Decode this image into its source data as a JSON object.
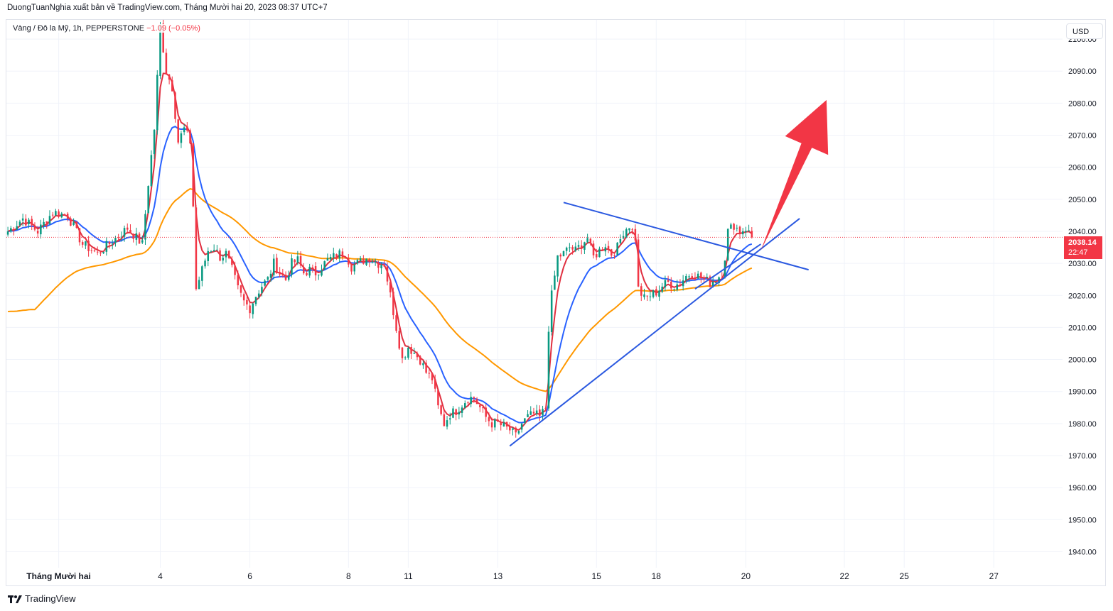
{
  "header": {
    "text": "DuongTuanNghia xuất bản về TradingView.com, Tháng Mười hai 20, 2023 08:37 UTC+7"
  },
  "symbol": {
    "name": "Vàng / Đô la Mỹ, 1h, PEPPERSTONE",
    "change": "−1.09 (−0.05%)"
  },
  "currency": "USD",
  "last_price": {
    "value": "2038.14",
    "countdown": "22:47"
  },
  "footer": {
    "brand": "TradingView"
  },
  "colors": {
    "up": "#089981",
    "down": "#f23645",
    "ma_fast": "#e03040",
    "ma_mid": "#2962ff",
    "ma_slow": "#ff9800",
    "trendline": "#2b59e0",
    "arrow": "#f23645"
  },
  "chart_data": {
    "type": "candlestick",
    "title": "",
    "y_axis": {
      "ticks": [
        "1940.00",
        "1950.00",
        "1960.00",
        "1970.00",
        "1980.00",
        "1990.00",
        "2000.00",
        "2010.00",
        "2020.00",
        "2030.00",
        "2040.00",
        "2050.00",
        "2060.00",
        "2070.00",
        "2080.00",
        "2090.00",
        "2100.00"
      ],
      "ylim": [
        1935,
        2106
      ]
    },
    "x_axis": {
      "ticks": [
        {
          "label": "Tháng Mười hai",
          "index": 17
        },
        {
          "label": "4",
          "index": 51
        },
        {
          "label": "6",
          "index": 81
        },
        {
          "label": "8",
          "index": 114
        },
        {
          "label": "11",
          "index": 134
        },
        {
          "label": "13",
          "index": 164
        },
        {
          "label": "15",
          "index": 197
        },
        {
          "label": "18",
          "index": 217
        },
        {
          "label": "20",
          "index": 247
        },
        {
          "label": "22",
          "index": 280
        },
        {
          "label": "25",
          "index": 300
        },
        {
          "label": "27",
          "index": 330
        }
      ],
      "xlim": [
        -0.5,
        353
      ]
    },
    "price_path": [
      [
        0,
        2040
      ],
      [
        5,
        2044
      ],
      [
        10,
        2040
      ],
      [
        15,
        2046
      ],
      [
        20,
        2045
      ],
      [
        25,
        2036
      ],
      [
        30,
        2033
      ],
      [
        35,
        2037
      ],
      [
        40,
        2041
      ],
      [
        45,
        2036
      ],
      [
        47,
        2055
      ],
      [
        49,
        2072
      ],
      [
        51,
        2104
      ],
      [
        53,
        2090
      ],
      [
        55,
        2085
      ],
      [
        57,
        2068
      ],
      [
        59,
        2072
      ],
      [
        61,
        2068
      ],
      [
        62,
        2048
      ],
      [
        63,
        2022
      ],
      [
        65,
        2028
      ],
      [
        67,
        2034
      ],
      [
        69,
        2035
      ],
      [
        71,
        2032
      ],
      [
        73,
        2033
      ],
      [
        75,
        2028
      ],
      [
        77,
        2022
      ],
      [
        79,
        2018
      ],
      [
        81,
        2016
      ],
      [
        83,
        2020
      ],
      [
        85,
        2023
      ],
      [
        87,
        2025
      ],
      [
        89,
        2030
      ],
      [
        91,
        2027
      ],
      [
        93,
        2025
      ],
      [
        95,
        2030
      ],
      [
        97,
        2031
      ],
      [
        99,
        2027
      ],
      [
        101,
        2028
      ],
      [
        103,
        2027
      ],
      [
        105,
        2029
      ],
      [
        107,
        2031
      ],
      [
        109,
        2032
      ],
      [
        111,
        2033
      ],
      [
        113,
        2033
      ],
      [
        115,
        2029
      ],
      [
        117,
        2030
      ],
      [
        119,
        2031
      ],
      [
        121,
        2032
      ],
      [
        124,
        2030
      ],
      [
        126,
        2030
      ],
      [
        128,
        2020
      ],
      [
        130,
        2010
      ],
      [
        132,
        2000
      ],
      [
        134,
        2004
      ],
      [
        136,
        2002
      ],
      [
        138,
        2000
      ],
      [
        140,
        1996
      ],
      [
        142,
        1994
      ],
      [
        144,
        1985
      ],
      [
        146,
        1980
      ],
      [
        148,
        1983
      ],
      [
        150,
        1984
      ],
      [
        152,
        1986
      ],
      [
        154,
        1988
      ],
      [
        156,
        1988
      ],
      [
        158,
        1985
      ],
      [
        160,
        1982
      ],
      [
        162,
        1980
      ],
      [
        164,
        1980
      ],
      [
        166,
        1979
      ],
      [
        168,
        1978
      ],
      [
        170,
        1976
      ],
      [
        172,
        1980
      ],
      [
        174,
        1982
      ],
      [
        176,
        1983
      ],
      [
        178,
        1982
      ],
      [
        180,
        1985
      ],
      [
        181,
        2010
      ],
      [
        182,
        2020
      ],
      [
        184,
        2032
      ],
      [
        186,
        2033
      ],
      [
        188,
        2035
      ],
      [
        190,
        2034
      ],
      [
        192,
        2036
      ],
      [
        194,
        2038
      ],
      [
        196,
        2032
      ],
      [
        198,
        2034
      ],
      [
        200,
        2036
      ],
      [
        202,
        2033
      ],
      [
        204,
        2035
      ],
      [
        206,
        2040
      ],
      [
        208,
        2042
      ],
      [
        210,
        2038
      ],
      [
        211,
        2022
      ],
      [
        213,
        2019
      ],
      [
        215,
        2020
      ],
      [
        217,
        2021
      ],
      [
        219,
        2023
      ],
      [
        221,
        2024
      ],
      [
        223,
        2023
      ],
      [
        225,
        2024
      ],
      [
        227,
        2026
      ],
      [
        229,
        2027
      ],
      [
        231,
        2026
      ],
      [
        233,
        2025
      ],
      [
        235,
        2024
      ],
      [
        237,
        2025
      ],
      [
        239,
        2027
      ],
      [
        240,
        2032
      ],
      [
        241,
        2040
      ],
      [
        243,
        2042
      ],
      [
        245,
        2040
      ],
      [
        247,
        2041
      ],
      [
        249,
        2038.14
      ]
    ],
    "annotations": {
      "support_line": [
        [
          168,
          1973
        ],
        [
          265,
          2044
        ]
      ],
      "resistance_line": [
        [
          186,
          2049
        ],
        [
          268,
          2028
        ]
      ],
      "small_support": [
        [
          230,
          2022
        ],
        [
          252,
          2036
        ]
      ],
      "up_arrow": {
        "from": [
          252,
          2034
        ],
        "to": [
          274,
          2081
        ]
      }
    }
  }
}
